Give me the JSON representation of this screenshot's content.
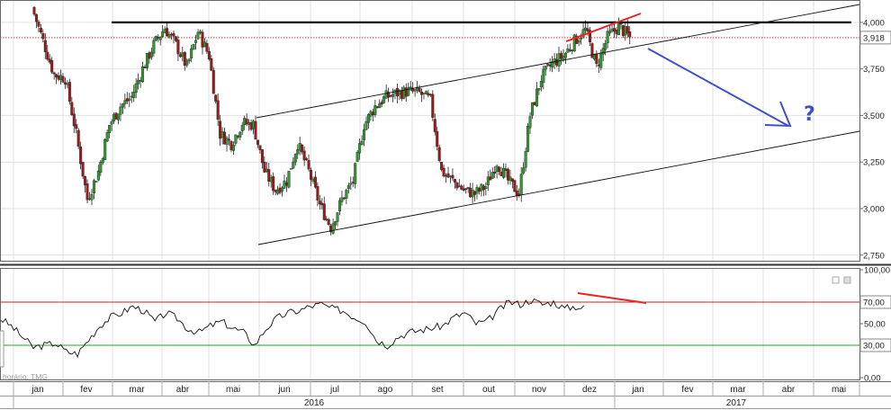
{
  "watermark": "horário: TMG",
  "colors": {
    "candle_up": "#2f9b2f",
    "candle_down": "#9b1b1b",
    "resistance": "#000000",
    "channel": "#111111",
    "divergence": "#ee2222",
    "projection": "#4050c8",
    "osc_line": "#111111",
    "osc_upper": "#cc2222",
    "osc_lower": "#22aa22",
    "last_price_line": "#d04040"
  },
  "chart_data": [
    {
      "type": "candlestick",
      "title": "",
      "ylim": [
        2.72,
        4.12
      ],
      "yticks": [
        {
          "v": 2.75,
          "label": "2,750"
        },
        {
          "v": 3.0,
          "label": "3,000"
        },
        {
          "v": 3.25,
          "label": "3,250"
        },
        {
          "v": 3.5,
          "label": "3,500"
        },
        {
          "v": 3.75,
          "label": "3,750"
        },
        {
          "v": 4.0,
          "label": "4,000"
        }
      ],
      "last_price": {
        "v": 3.918,
        "label": "3,918"
      },
      "resistance_level": 4.0,
      "annotation": "?",
      "x_months": [
        "jan",
        "fev",
        "mar",
        "abr",
        "mai",
        "jun",
        "jul",
        "ago",
        "set",
        "out",
        "nov",
        "dez",
        "jan",
        "fev",
        "mar",
        "abr",
        "mai"
      ],
      "x_years": [
        "2016",
        "2017"
      ],
      "weekly_closes": [
        4.08,
        3.9,
        3.72,
        3.7,
        3.4,
        3.05,
        3.2,
        3.45,
        3.55,
        3.6,
        3.75,
        3.88,
        3.97,
        3.88,
        3.76,
        3.95,
        3.82,
        3.4,
        3.35,
        3.46,
        3.45,
        3.2,
        3.1,
        3.15,
        3.35,
        3.2,
        3.02,
        2.9,
        3.05,
        3.15,
        3.45,
        3.55,
        3.6,
        3.62,
        3.63,
        3.62,
        3.58,
        3.2,
        3.15,
        3.1,
        3.08,
        3.12,
        3.25,
        3.15,
        3.08,
        3.5,
        3.7,
        3.78,
        3.82,
        3.9,
        3.96,
        3.76,
        3.92,
        3.98,
        3.918
      ]
    },
    {
      "type": "line",
      "title": "",
      "ylim": [
        0,
        100
      ],
      "yticks": [
        {
          "v": 0,
          "label": "0,00"
        },
        {
          "v": 50,
          "label": "50,00"
        },
        {
          "v": 100,
          "label": "100,00"
        }
      ],
      "upper_level": {
        "v": 70,
        "label": "70,00"
      },
      "lower_level": {
        "v": 30,
        "label": "30,00"
      },
      "values": [
        55,
        48,
        38,
        28,
        30,
        32,
        24,
        22,
        35,
        48,
        56,
        60,
        66,
        62,
        52,
        60,
        55,
        45,
        42,
        48,
        52,
        46,
        42,
        30,
        45,
        55,
        60,
        62,
        66,
        68,
        64,
        62,
        56,
        52,
        35,
        30,
        38,
        42,
        44,
        46,
        48,
        56,
        60,
        50,
        52,
        62,
        70,
        68,
        72,
        68,
        70,
        64,
        66,
        64
      ]
    }
  ]
}
